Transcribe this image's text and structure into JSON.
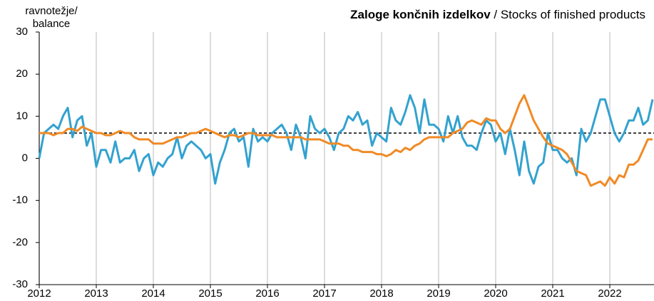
{
  "chart_data": {
    "type": "line",
    "title": "Zaloge končnih izdelkov",
    "subtitle": "/ Stocks of finished products",
    "y_label": [
      "ravnotežje/",
      "balance"
    ],
    "categories": [
      "2012",
      null,
      null,
      null,
      null,
      null,
      null,
      null,
      null,
      null,
      null,
      null,
      "2013",
      null,
      null,
      null,
      null,
      null,
      null,
      null,
      null,
      null,
      null,
      null,
      "2014",
      null,
      null,
      null,
      null,
      null,
      null,
      null,
      null,
      null,
      null,
      null,
      "2015",
      null,
      null,
      null,
      null,
      null,
      null,
      null,
      null,
      null,
      null,
      null,
      "2016",
      null,
      null,
      null,
      null,
      null,
      null,
      null,
      null,
      null,
      null,
      null,
      "2017",
      null,
      null,
      null,
      null,
      null,
      null,
      null,
      null,
      null,
      null,
      null,
      "2018",
      null,
      null,
      null,
      null,
      null,
      null,
      null,
      null,
      null,
      null,
      null,
      "2019",
      null,
      null,
      null,
      null,
      null,
      null,
      null,
      null,
      null,
      null,
      null,
      "2020",
      null,
      null,
      null,
      null,
      null,
      null,
      null,
      null,
      null,
      null,
      null,
      "2021",
      null,
      null,
      null,
      null,
      null,
      null,
      null,
      null,
      null,
      null,
      null,
      "2022",
      null,
      null,
      null,
      null,
      null,
      null,
      null,
      null,
      null
    ],
    "series": [
      {
        "color": "#33a2cf",
        "values": [
          0,
          6,
          7,
          8,
          7,
          10,
          12,
          5,
          9,
          10,
          3,
          6,
          -2,
          2,
          2,
          -1,
          4,
          -1,
          0,
          0,
          2,
          -3,
          0,
          1,
          -4,
          -1,
          -2,
          0,
          1,
          5,
          0,
          3,
          4,
          3,
          2,
          0,
          1,
          -6,
          -1,
          2,
          6,
          7,
          4,
          5,
          -2,
          7,
          4,
          5,
          4,
          6,
          7,
          8,
          6,
          2,
          8,
          5,
          0,
          10,
          7,
          6,
          7,
          5,
          2,
          6,
          7,
          10,
          9,
          11,
          8,
          9,
          3,
          6,
          5,
          4,
          12,
          9,
          8,
          11,
          15,
          12,
          6,
          14,
          8,
          8,
          7,
          4,
          10,
          6,
          10,
          5,
          3,
          3,
          2,
          6,
          9,
          8,
          4,
          6,
          1,
          7,
          2,
          -4,
          4,
          -3,
          -6,
          -2,
          -1,
          6,
          2,
          2,
          0,
          -1,
          0,
          -4,
          7,
          4,
          6,
          10,
          14,
          14,
          10,
          6,
          4,
          6,
          9,
          9,
          12,
          8,
          9,
          14
        ]
      },
      {
        "color": "#f08a25",
        "values": [
          6,
          6,
          6,
          5.5,
          6,
          6,
          7,
          7,
          6.5,
          7.5,
          7,
          6.5,
          6,
          6,
          5.5,
          5.5,
          6,
          6.5,
          6,
          6,
          5,
          4.5,
          4.5,
          4.5,
          3.5,
          3.5,
          3.5,
          4,
          4.5,
          5,
          5,
          5.5,
          6,
          6,
          6.5,
          7,
          6.5,
          6,
          5.5,
          5,
          5.5,
          5.5,
          5,
          5.5,
          6,
          6,
          5.5,
          5.5,
          5.5,
          5.5,
          5,
          5,
          5,
          5,
          5,
          5,
          4.5,
          4.5,
          4.5,
          4.5,
          4,
          3.5,
          3.5,
          3.5,
          3,
          3,
          2,
          2,
          1.5,
          1.5,
          1.5,
          1,
          1,
          0.5,
          1,
          2,
          1.5,
          2.5,
          2,
          3,
          3.5,
          4.5,
          5,
          5,
          5,
          5,
          5,
          6,
          6.5,
          7,
          8.5,
          9,
          8.5,
          8,
          9.5,
          9,
          9,
          7,
          6,
          7,
          10,
          13,
          15,
          12,
          9,
          7,
          5,
          3.5,
          3,
          2.5,
          2,
          1,
          -1,
          -3,
          -3.5,
          -4,
          -6.5,
          -6,
          -5.5,
          -6.5,
          -4.5,
          -6,
          -4,
          -4.5,
          -1.5,
          -1.5,
          -0.5,
          2,
          4.5,
          4.5
        ]
      }
    ],
    "reference_line": 6,
    "ylim": [
      -30,
      30
    ],
    "yticks": [
      -30,
      -20,
      -10,
      0,
      10,
      20,
      30
    ],
    "grid": true
  }
}
